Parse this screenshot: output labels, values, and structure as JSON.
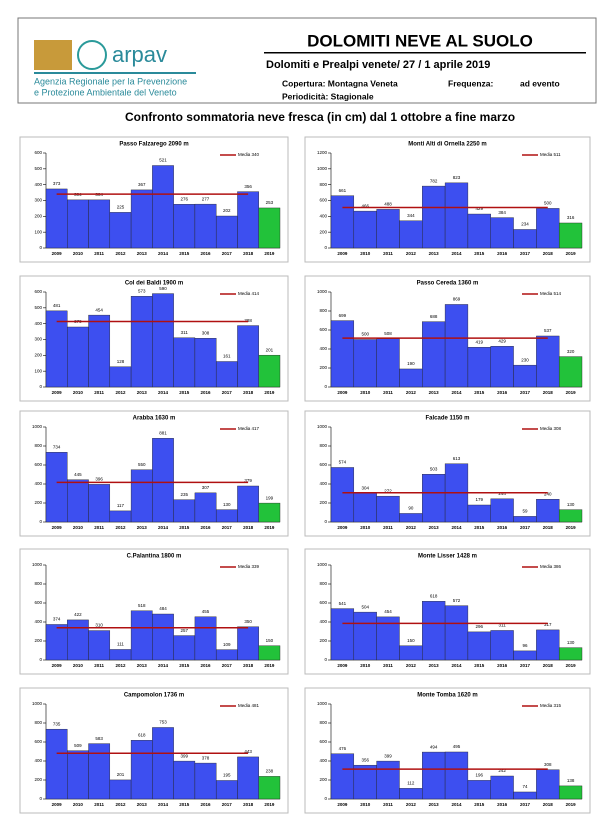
{
  "header": {
    "logo_text": "arpav",
    "agency_line1": "Agenzia Regionale per la Prevenzione",
    "agency_line2": "e Protezione Ambientale del Veneto",
    "title": "DOLOMITI NEVE AL SUOLO",
    "subtitle": "Dolomiti e Prealpi venete/ 27 / 1 aprile 2019",
    "coverage": "Copertura: Montagna Veneta",
    "frequency_label": "Frequenza:",
    "frequency_value": "ad evento",
    "periodicity": "Periodicità: Stagionale"
  },
  "main_title": "Confronto sommatoria neve fresca (in cm)  dal 1 ottobre a fine marzo",
  "chart_data": [
    {
      "type": "bar",
      "title": "Passo Falzarego 2090 m",
      "categories": [
        "2009",
        "2010",
        "2011",
        "2012",
        "2013",
        "2014",
        "2015",
        "2016",
        "2017",
        "2018",
        "2019"
      ],
      "values": [
        373,
        304,
        304,
        225,
        367,
        521,
        276,
        277,
        202,
        356,
        253
      ],
      "color": "#3d4ff0",
      "highlight_color": "#22c23a",
      "mean": {
        "name": "Media 340",
        "value": 340,
        "color": "#b01010"
      },
      "ylim": [
        0,
        600
      ],
      "yticks": [
        0,
        100,
        200,
        300,
        400,
        500,
        600
      ]
    },
    {
      "type": "bar",
      "title": "Monti Alti di Ornella 2250 m",
      "categories": [
        "2009",
        "2010",
        "2011",
        "2012",
        "2013",
        "2014",
        "2015",
        "2016",
        "2017",
        "2018",
        "2019"
      ],
      "values": [
        661,
        466,
        488,
        344,
        782,
        823,
        429,
        384,
        234,
        500,
        316
      ],
      "color": "#3d4ff0",
      "highlight_color": "#22c23a",
      "mean": {
        "name": "Media 511",
        "value": 511,
        "color": "#b01010"
      },
      "ylim": [
        0,
        1200
      ],
      "yticks": [
        0,
        200,
        400,
        600,
        800,
        1000,
        1200
      ]
    },
    {
      "type": "bar",
      "title": "Col dei Baldi 1900 m",
      "categories": [
        "2009",
        "2010",
        "2011",
        "2012",
        "2013",
        "2014",
        "2015",
        "2016",
        "2017",
        "2018",
        "2019"
      ],
      "values": [
        481,
        379,
        454,
        128,
        573,
        590,
        311,
        308,
        161,
        388,
        201
      ],
      "color": "#3d4ff0",
      "highlight_color": "#22c23a",
      "mean": {
        "name": "Media 414",
        "value": 414,
        "color": "#b01010"
      },
      "ylim": [
        0,
        600
      ],
      "yticks": [
        0,
        100,
        200,
        300,
        400,
        500,
        600
      ]
    },
    {
      "type": "bar",
      "title": "Passo Cereda 1360 m",
      "categories": [
        "2009",
        "2010",
        "2011",
        "2012",
        "2013",
        "2014",
        "2015",
        "2016",
        "2017",
        "2018",
        "2019"
      ],
      "values": [
        699,
        500,
        508,
        190,
        688,
        869,
        419,
        429,
        230,
        537,
        320
      ],
      "color": "#3d4ff0",
      "highlight_color": "#22c23a",
      "mean": {
        "name": "Media 514",
        "value": 514,
        "color": "#b01010"
      },
      "ylim": [
        0,
        1000
      ],
      "yticks": [
        0,
        200,
        400,
        600,
        800,
        1000
      ]
    },
    {
      "type": "bar",
      "title": "Arabba 1630 m",
      "categories": [
        "2009",
        "2010",
        "2011",
        "2012",
        "2013",
        "2014",
        "2015",
        "2016",
        "2017",
        "2018",
        "2019"
      ],
      "values": [
        734,
        445,
        396,
        117,
        550,
        881,
        235,
        307,
        130,
        379,
        199
      ],
      "color": "#3d4ff0",
      "highlight_color": "#22c23a",
      "mean": {
        "name": "Media 417",
        "value": 417,
        "color": "#b01010"
      },
      "ylim": [
        0,
        1000
      ],
      "yticks": [
        0,
        200,
        400,
        600,
        800,
        1000
      ]
    },
    {
      "type": "bar",
      "title": "Falcade 1150 m",
      "categories": [
        "2009",
        "2010",
        "2011",
        "2012",
        "2013",
        "2014",
        "2015",
        "2016",
        "2017",
        "2018",
        "2019"
      ],
      "values": [
        574,
        304,
        272,
        90,
        503,
        613,
        179,
        244,
        59,
        240,
        130
      ],
      "color": "#3d4ff0",
      "highlight_color": "#22c23a",
      "mean": {
        "name": "Media 308",
        "value": 308,
        "color": "#b01010"
      },
      "ylim": [
        0,
        1000
      ],
      "yticks": [
        0,
        200,
        400,
        600,
        800,
        1000
      ]
    },
    {
      "type": "bar",
      "title": "C.Palantina 1800 m",
      "categories": [
        "2009",
        "2010",
        "2011",
        "2012",
        "2013",
        "2014",
        "2015",
        "2016",
        "2017",
        "2018",
        "2019"
      ],
      "values": [
        374,
        422,
        310,
        111,
        518,
        484,
        257,
        455,
        109,
        350,
        150
      ],
      "color": "#3d4ff0",
      "highlight_color": "#22c23a",
      "mean": {
        "name": "Media 339",
        "value": 339,
        "color": "#b01010"
      },
      "ylim": [
        0,
        1000
      ],
      "yticks": [
        0,
        200,
        400,
        600,
        800,
        1000
      ]
    },
    {
      "type": "bar",
      "title": "Monte Lisser 1428 m",
      "categories": [
        "2009",
        "2010",
        "2011",
        "2012",
        "2013",
        "2014",
        "2015",
        "2016",
        "2017",
        "2018",
        "2019"
      ],
      "values": [
        541,
        504,
        454,
        150,
        618,
        572,
        296,
        311,
        96,
        317,
        130
      ],
      "color": "#3d4ff0",
      "highlight_color": "#22c23a",
      "mean": {
        "name": "Media 386",
        "value": 386,
        "color": "#b01010"
      },
      "ylim": [
        0,
        1000
      ],
      "yticks": [
        0,
        200,
        400,
        600,
        800,
        1000
      ]
    },
    {
      "type": "bar",
      "title": "Campomolon 1736 m",
      "categories": [
        "2009",
        "2010",
        "2011",
        "2012",
        "2013",
        "2014",
        "2015",
        "2016",
        "2017",
        "2018",
        "2019"
      ],
      "values": [
        735,
        509,
        583,
        201,
        618,
        753,
        399,
        378,
        195,
        443,
        238
      ],
      "color": "#3d4ff0",
      "highlight_color": "#22c23a",
      "mean": {
        "name": "Media 481",
        "value": 481,
        "color": "#b01010"
      },
      "ylim": [
        0,
        1000
      ],
      "yticks": [
        0,
        200,
        400,
        600,
        800,
        1000
      ]
    },
    {
      "type": "bar",
      "title": "Monte Tomba 1620 m",
      "categories": [
        "2009",
        "2010",
        "2011",
        "2012",
        "2013",
        "2014",
        "2015",
        "2016",
        "2017",
        "2018",
        "2019"
      ],
      "values": [
        476,
        356,
        399,
        112,
        494,
        495,
        196,
        242,
        74,
        308,
        138
      ],
      "color": "#3d4ff0",
      "highlight_color": "#22c23a",
      "mean": {
        "name": "Media 315",
        "value": 315,
        "color": "#b01010"
      },
      "ylim": [
        0,
        1000
      ],
      "yticks": [
        0,
        200,
        400,
        600,
        800,
        1000
      ]
    }
  ]
}
